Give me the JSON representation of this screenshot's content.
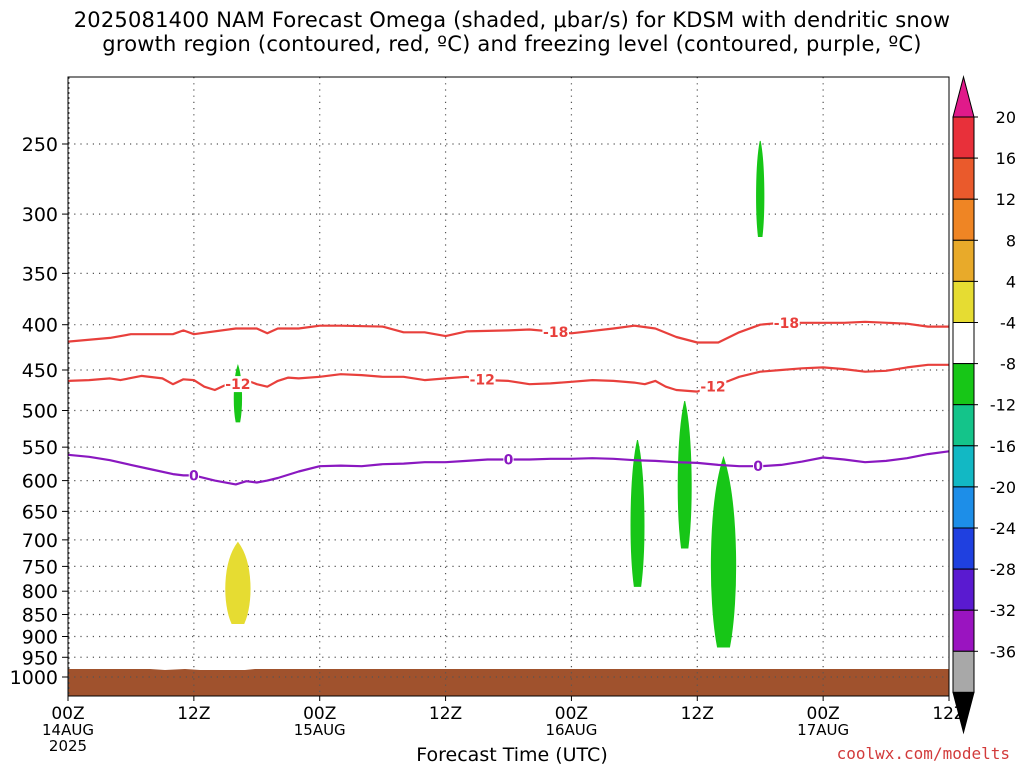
{
  "title_line1": "2025081400 NAM Forecast Omega (shaded, μbar/s) for KDSM with dendritic snow",
  "title_line2": "growth region (contoured, red, ºC) and freezing level (contoured, purple, ºC)",
  "credit": "coolwx.com/modelts",
  "chart_data": {
    "type": "heatmap",
    "xlabel": "Forecast Time (UTC)",
    "ylabel": "",
    "x_ticks": [
      {
        "h": 0,
        "lines": [
          "00Z",
          "14AUG",
          "2025"
        ]
      },
      {
        "h": 12,
        "lines": [
          "12Z"
        ]
      },
      {
        "h": 24,
        "lines": [
          "00Z",
          "15AUG"
        ]
      },
      {
        "h": 36,
        "lines": [
          "12Z"
        ]
      },
      {
        "h": 48,
        "lines": [
          "00Z",
          "16AUG"
        ]
      },
      {
        "h": 60,
        "lines": [
          "12Z"
        ]
      },
      {
        "h": 72,
        "lines": [
          "00Z",
          "17AUG"
        ]
      },
      {
        "h": 84,
        "lines": [
          "12Z"
        ]
      }
    ],
    "xlim_hours": [
      0,
      84
    ],
    "y_ticks": [
      250,
      300,
      350,
      400,
      450,
      500,
      550,
      600,
      650,
      700,
      750,
      800,
      850,
      900,
      950,
      1000
    ],
    "ylim_hPa": [
      200,
      1025
    ],
    "y_scale": "log-pressure",
    "colorbar": {
      "labels": [
        20,
        16,
        12,
        8,
        4,
        -4,
        -8,
        -12,
        -16,
        -20,
        -24,
        -28,
        -32,
        -36
      ],
      "colors": [
        "#e8303a",
        "#ea5a2c",
        "#ef8524",
        "#e8aa2a",
        "#e6dc32",
        "#ffffff",
        "#17c617",
        "#14c48a",
        "#12b8c4",
        "#1d8ee8",
        "#1f40e0",
        "#5a1ad0",
        "#9a14c0",
        "#a8a8a8"
      ],
      "top_arrow_color": "#e01a8a",
      "bottom_arrow_color": "#000000"
    },
    "ground_color": "#a0522d",
    "omega_areas": [
      {
        "value_band": "-4 to -8",
        "color": "#17c617",
        "hour": 66,
        "p_top": 248,
        "p_bottom": 318
      },
      {
        "value_band": "-4 to -8",
        "color": "#17c617",
        "hour": 16.2,
        "p_top": 445,
        "p_bottom": 515
      },
      {
        "value_band": "4 to 8",
        "color": "#e6dc32",
        "hour": 16.2,
        "p_top": 705,
        "p_bottom": 870
      },
      {
        "value_band": "-4 to -8",
        "color": "#17c617",
        "hour": 54.3,
        "p_top": 540,
        "p_bottom": 790
      },
      {
        "value_band": "-4 to -8",
        "color": "#17c617",
        "hour": 58.8,
        "p_top": 488,
        "p_bottom": 715
      },
      {
        "value_band": "-4 to -8",
        "color": "#17c617",
        "hour": 62.5,
        "p_top": 565,
        "p_bottom": 925
      }
    ],
    "contours": [
      {
        "value": -18,
        "label": "-18",
        "color": "#e8403c",
        "points": [
          [
            0,
            418
          ],
          [
            4,
            414
          ],
          [
            6,
            410
          ],
          [
            10,
            410
          ],
          [
            11,
            406
          ],
          [
            12,
            410
          ],
          [
            16,
            404
          ],
          [
            18,
            404
          ],
          [
            19,
            409
          ],
          [
            20,
            404
          ],
          [
            22,
            404
          ],
          [
            24,
            401
          ],
          [
            26,
            401
          ],
          [
            30,
            402
          ],
          [
            32,
            408
          ],
          [
            34,
            408
          ],
          [
            36,
            412
          ],
          [
            38,
            407
          ],
          [
            42,
            406
          ],
          [
            44,
            405
          ],
          [
            48,
            409
          ],
          [
            52,
            404
          ],
          [
            54,
            401
          ],
          [
            56,
            404
          ],
          [
            58,
            413
          ],
          [
            60,
            419
          ],
          [
            62,
            419
          ],
          [
            64,
            408
          ],
          [
            66,
            400
          ],
          [
            68,
            398
          ],
          [
            70,
            398
          ],
          [
            74,
            398
          ],
          [
            76,
            397
          ],
          [
            80,
            399
          ],
          [
            82,
            402
          ],
          [
            84,
            402
          ]
        ],
        "label_hours": [
          46.5,
          68.5
        ]
      },
      {
        "value": -12,
        "label": "-12",
        "color": "#e8403c",
        "points": [
          [
            0,
            463
          ],
          [
            2,
            462
          ],
          [
            4,
            460
          ],
          [
            5,
            462
          ],
          [
            7,
            457
          ],
          [
            9,
            460
          ],
          [
            10,
            467
          ],
          [
            11,
            461
          ],
          [
            12,
            462
          ],
          [
            13,
            470
          ],
          [
            14,
            474
          ],
          [
            15,
            468
          ],
          [
            16,
            468
          ],
          [
            17,
            462
          ],
          [
            18,
            467
          ],
          [
            19,
            470
          ],
          [
            20,
            463
          ],
          [
            21,
            459
          ],
          [
            22,
            460
          ],
          [
            24,
            458
          ],
          [
            26,
            455
          ],
          [
            28,
            456
          ],
          [
            30,
            458
          ],
          [
            32,
            458
          ],
          [
            34,
            462
          ],
          [
            36,
            460
          ],
          [
            38,
            458
          ],
          [
            40,
            462
          ],
          [
            42,
            463
          ],
          [
            44,
            467
          ],
          [
            46,
            466
          ],
          [
            48,
            464
          ],
          [
            50,
            462
          ],
          [
            52,
            463
          ],
          [
            54,
            465
          ],
          [
            55,
            467
          ],
          [
            56,
            463
          ],
          [
            57,
            470
          ],
          [
            58,
            474
          ],
          [
            60,
            476
          ],
          [
            61,
            472
          ],
          [
            62,
            467
          ],
          [
            63,
            463
          ],
          [
            64,
            458
          ],
          [
            66,
            452
          ],
          [
            68,
            450
          ],
          [
            70,
            448
          ],
          [
            72,
            447
          ],
          [
            74,
            449
          ],
          [
            76,
            452
          ],
          [
            78,
            451
          ],
          [
            80,
            447
          ],
          [
            82,
            444
          ],
          [
            84,
            444
          ]
        ],
        "label_hours": [
          16.2,
          39.5,
          61.5
        ]
      },
      {
        "value": 0,
        "label": "0",
        "color": "#8a18c0",
        "points": [
          [
            0,
            561
          ],
          [
            2,
            564
          ],
          [
            4,
            569
          ],
          [
            6,
            576
          ],
          [
            8,
            583
          ],
          [
            10,
            590
          ],
          [
            11,
            592
          ],
          [
            12,
            592
          ],
          [
            14,
            600
          ],
          [
            16,
            606
          ],
          [
            17,
            601
          ],
          [
            18,
            603
          ],
          [
            19,
            600
          ],
          [
            20,
            596
          ],
          [
            22,
            586
          ],
          [
            24,
            578
          ],
          [
            26,
            577
          ],
          [
            28,
            578
          ],
          [
            30,
            575
          ],
          [
            32,
            574
          ],
          [
            34,
            572
          ],
          [
            36,
            572
          ],
          [
            38,
            570
          ],
          [
            40,
            568
          ],
          [
            42,
            568
          ],
          [
            44,
            568
          ],
          [
            46,
            567
          ],
          [
            48,
            567
          ],
          [
            50,
            566
          ],
          [
            52,
            567
          ],
          [
            54,
            569
          ],
          [
            56,
            570
          ],
          [
            58,
            572
          ],
          [
            60,
            573
          ],
          [
            62,
            576
          ],
          [
            64,
            578
          ],
          [
            66,
            578
          ],
          [
            68,
            576
          ],
          [
            70,
            571
          ],
          [
            72,
            565
          ],
          [
            74,
            568
          ],
          [
            76,
            572
          ],
          [
            78,
            570
          ],
          [
            80,
            566
          ],
          [
            82,
            560
          ],
          [
            84,
            556
          ]
        ],
        "label_hours": [
          12,
          42,
          65.8
        ]
      }
    ]
  }
}
